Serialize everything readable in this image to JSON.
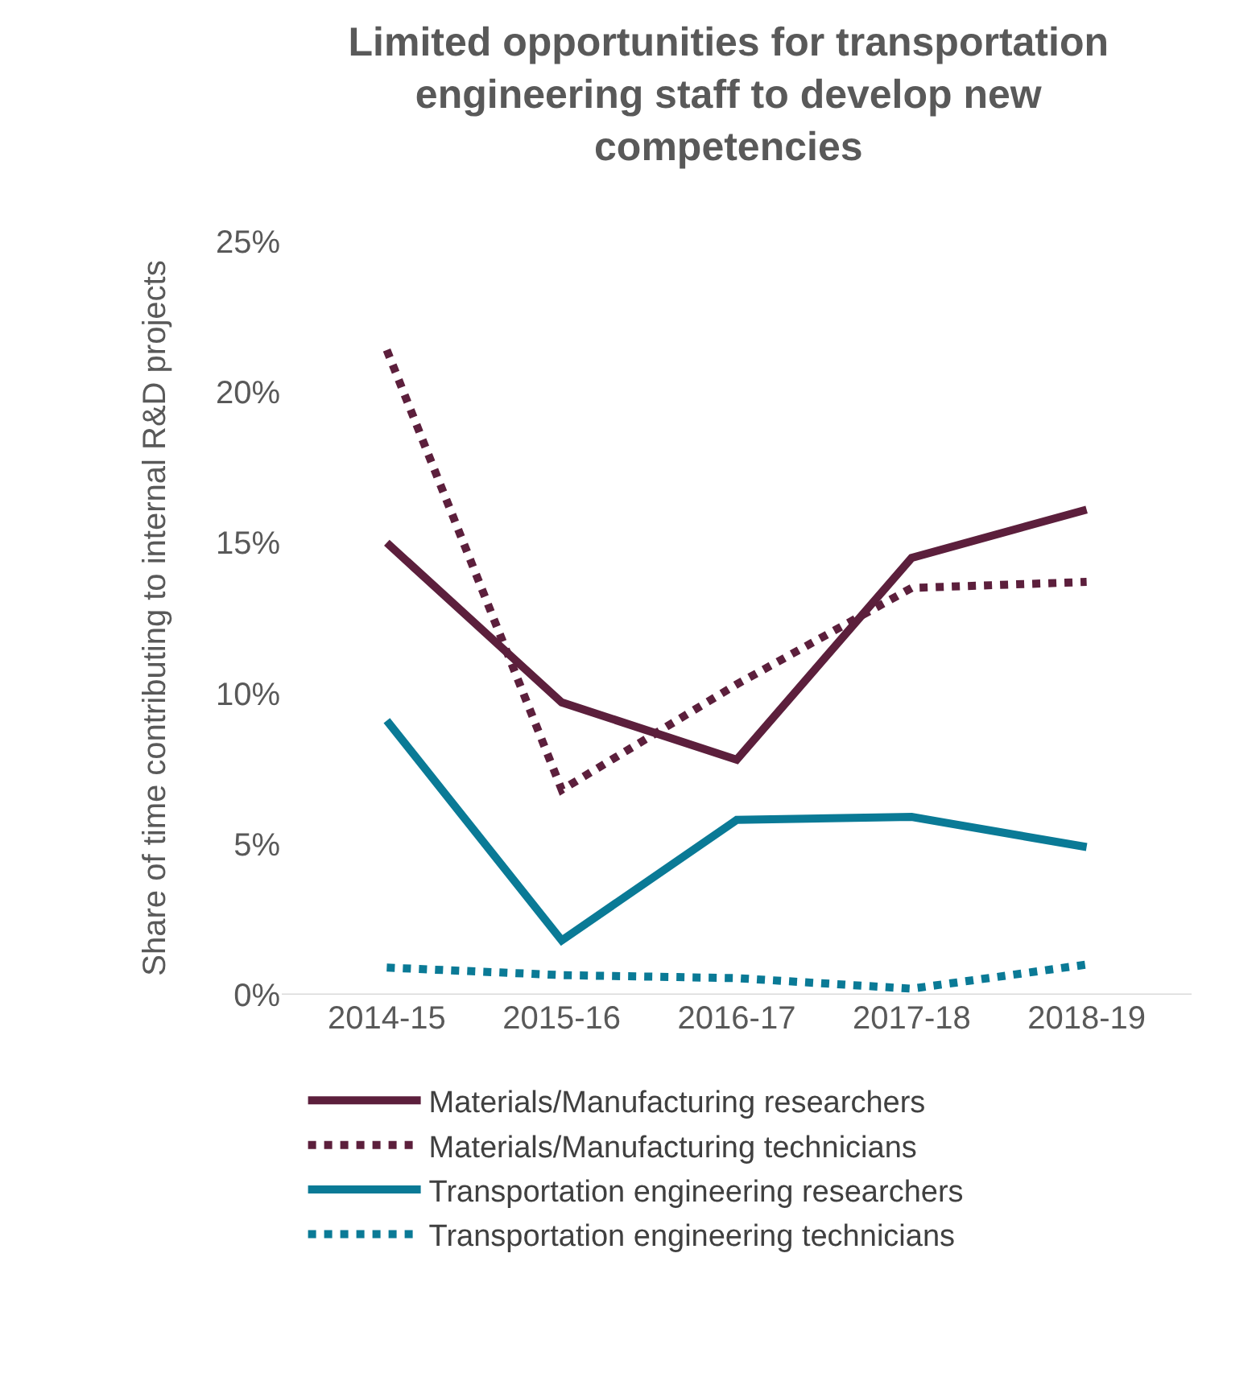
{
  "chart_data": {
    "type": "line",
    "title": "Limited opportunities for transportation engineering staff to develop new competencies",
    "ylabel": "Share of time contributing to internal R&D projects",
    "categories": [
      "2014-15",
      "2015-16",
      "2016-17",
      "2017-18",
      "2018-19"
    ],
    "series": [
      {
        "name": "Materials/Manufacturing researchers",
        "color": "#5c1f3c",
        "line_style": "solid",
        "values": [
          15.0,
          9.7,
          7.8,
          14.5,
          16.1
        ]
      },
      {
        "name": "Materials/Manufacturing technicians",
        "color": "#5c1f3c",
        "line_style": "dotted",
        "values": [
          21.4,
          6.8,
          10.3,
          13.5,
          13.7
        ]
      },
      {
        "name": "Transportation engineering researchers",
        "color": "#0a7a96",
        "line_style": "solid",
        "values": [
          9.1,
          1.8,
          5.8,
          5.9,
          4.9
        ]
      },
      {
        "name": "Transportation engineering technicians",
        "color": "#0a7a96",
        "line_style": "dotted",
        "values": [
          0.9,
          0.65,
          0.55,
          0.2,
          1.0
        ]
      }
    ],
    "ylim": [
      0,
      25
    ],
    "yticks": [
      {
        "value": 0,
        "label": "0%"
      },
      {
        "value": 5,
        "label": "5%"
      },
      {
        "value": 10,
        "label": "10%"
      },
      {
        "value": 15,
        "label": "15%"
      },
      {
        "value": 20,
        "label": "20%"
      },
      {
        "value": 25,
        "label": "25%"
      }
    ],
    "grid": false,
    "legend": "bottom",
    "marker": "none"
  }
}
